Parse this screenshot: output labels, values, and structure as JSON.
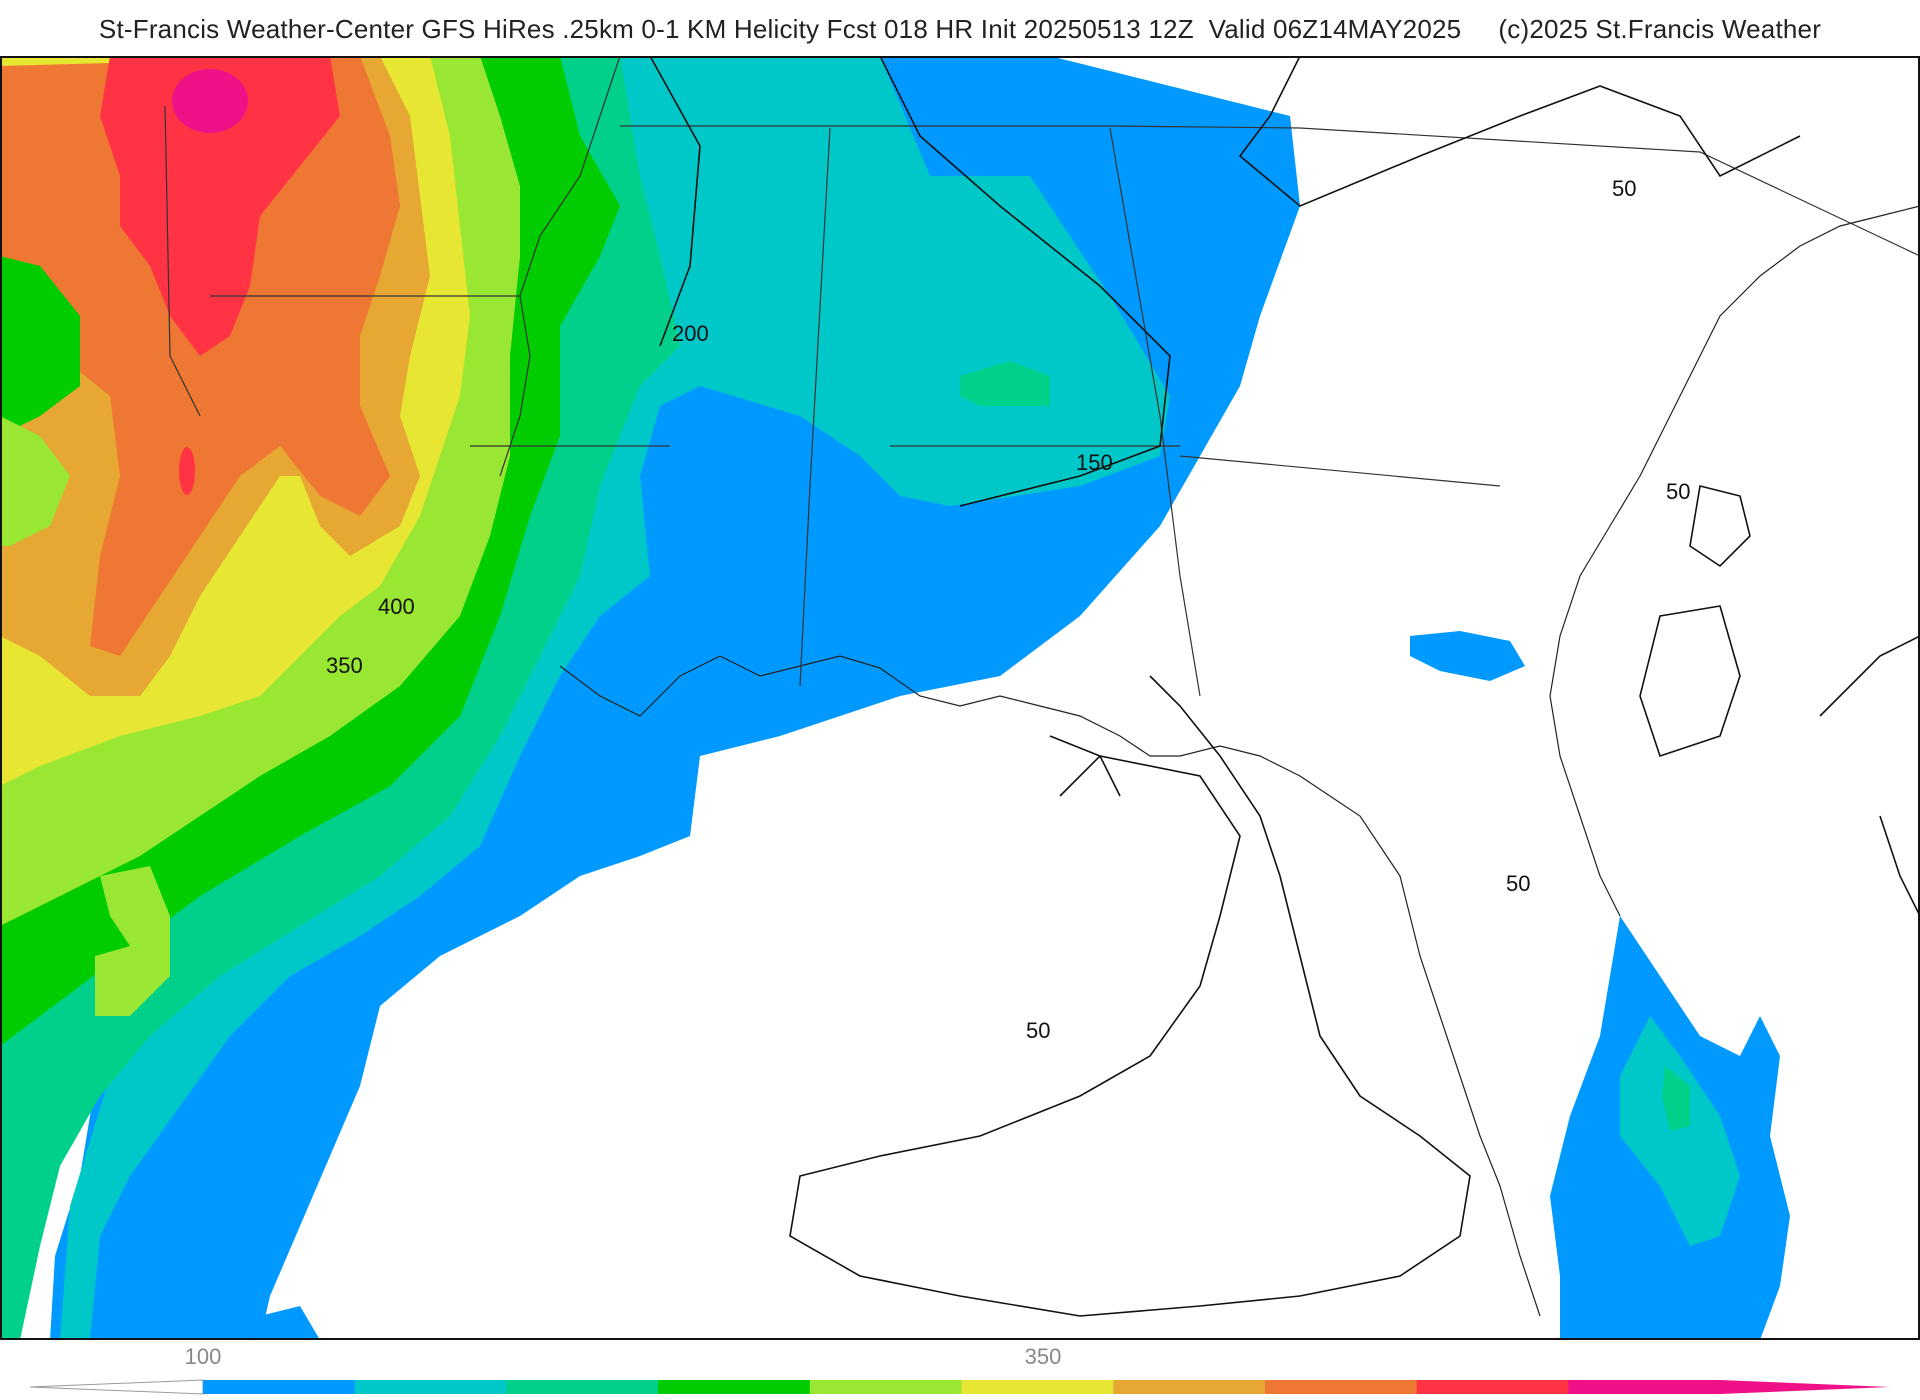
{
  "header": {
    "title": "St-Francis Weather-Center GFS HiRes .25km 0-1 KM Helicity Fcst 018 HR Init 20250513 12Z  Valid 06Z14MAY2025     (c)2025 St.Francis Weather"
  },
  "map": {
    "contour_labels": [
      "200",
      "150",
      "50",
      "50",
      "400",
      "350",
      "50",
      "50",
      "50"
    ]
  },
  "colorbar": {
    "tick_labels": [
      "100",
      "350"
    ],
    "colors": [
      "#0099ff",
      "#00c8c8",
      "#00d08a",
      "#00cc00",
      "#99e633",
      "#e6e633",
      "#e6a833",
      "#ee7733",
      "#ff3344",
      "#ee1188"
    ]
  }
}
